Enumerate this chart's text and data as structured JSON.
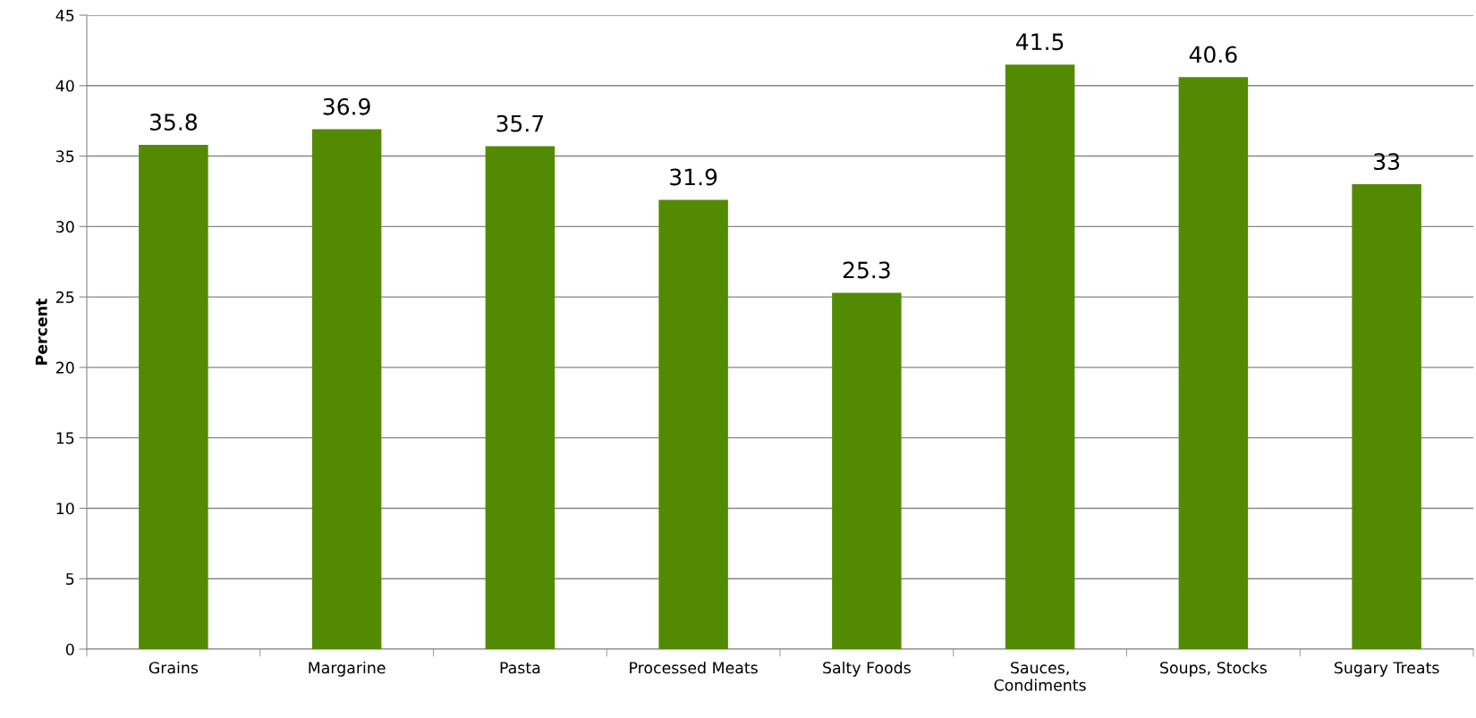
{
  "chart_data": {
    "type": "bar",
    "ylabel": "Percent",
    "categories": [
      "Grains",
      "Margarine",
      "Pasta",
      "Processed Meats",
      "Salty Foods",
      "Sauces,\nCondiments",
      "Soups, Stocks",
      "Sugary Treats"
    ],
    "values": [
      35.8,
      36.9,
      35.7,
      31.9,
      25.3,
      41.5,
      40.6,
      33
    ],
    "color": "#538a04",
    "ylim": [
      0,
      45
    ],
    "yticks": [
      0,
      5,
      10,
      15,
      20,
      25,
      30,
      35,
      40,
      45
    ],
    "grid": "y",
    "data_labels": true
  }
}
